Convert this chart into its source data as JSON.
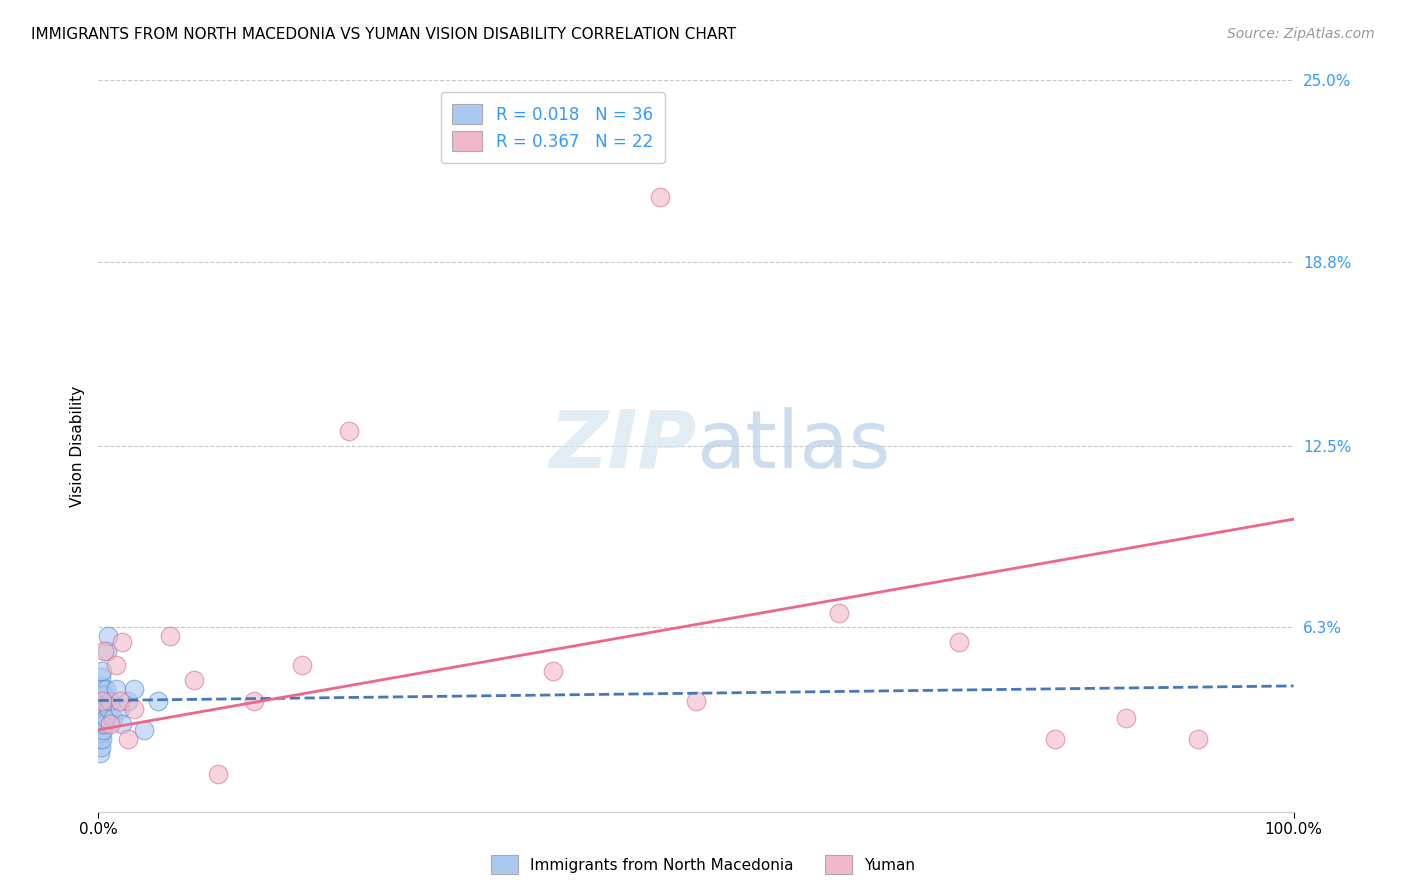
{
  "title": "IMMIGRANTS FROM NORTH MACEDONIA VS YUMAN VISION DISABILITY CORRELATION CHART",
  "source": "Source: ZipAtlas.com",
  "ylabel": "Vision Disability",
  "xlabel": "",
  "background_color": "#ffffff",
  "plot_bg_color": "#ffffff",
  "title_fontsize": 11,
  "source_fontsize": 10,
  "blue_R": 0.018,
  "blue_N": 36,
  "pink_R": 0.367,
  "pink_N": 22,
  "xlim": [
    0,
    1.0
  ],
  "ylim": [
    0,
    0.25
  ],
  "ytick_vals": [
    0.0,
    0.063,
    0.125,
    0.188,
    0.25
  ],
  "ytick_labels": [
    "",
    "6.3%",
    "12.5%",
    "18.8%",
    "25.0%"
  ],
  "xtick_vals": [
    0.0,
    1.0
  ],
  "xtick_labels": [
    "0.0%",
    "100.0%"
  ],
  "blue_scatter_x": [
    0.001,
    0.001,
    0.001,
    0.001,
    0.001,
    0.002,
    0.002,
    0.002,
    0.002,
    0.002,
    0.002,
    0.002,
    0.003,
    0.003,
    0.003,
    0.003,
    0.003,
    0.004,
    0.004,
    0.004,
    0.005,
    0.005,
    0.006,
    0.006,
    0.007,
    0.008,
    0.009,
    0.01,
    0.012,
    0.015,
    0.018,
    0.02,
    0.025,
    0.03,
    0.038,
    0.05
  ],
  "blue_scatter_y": [
    0.02,
    0.025,
    0.03,
    0.035,
    0.038,
    0.022,
    0.027,
    0.032,
    0.037,
    0.04,
    0.043,
    0.046,
    0.025,
    0.03,
    0.035,
    0.042,
    0.048,
    0.028,
    0.035,
    0.04,
    0.03,
    0.04,
    0.032,
    0.042,
    0.055,
    0.06,
    0.035,
    0.038,
    0.032,
    0.042,
    0.035,
    0.03,
    0.038,
    0.042,
    0.028,
    0.038
  ],
  "pink_scatter_x": [
    0.003,
    0.005,
    0.01,
    0.015,
    0.018,
    0.02,
    0.025,
    0.03,
    0.06,
    0.08,
    0.1,
    0.13,
    0.17,
    0.21,
    0.38,
    0.47,
    0.5,
    0.62,
    0.72,
    0.8,
    0.86,
    0.92
  ],
  "pink_scatter_y": [
    0.038,
    0.055,
    0.03,
    0.05,
    0.038,
    0.058,
    0.025,
    0.035,
    0.06,
    0.045,
    0.013,
    0.038,
    0.05,
    0.13,
    0.048,
    0.21,
    0.038,
    0.068,
    0.058,
    0.025,
    0.032,
    0.025
  ],
  "blue_line_y_start": 0.038,
  "blue_line_y_end": 0.043,
  "pink_line_y_start": 0.028,
  "pink_line_y_end": 0.1,
  "grid_color": "#c8c8c8",
  "blue_color": "#aac8f0",
  "blue_edge_color": "#5588cc",
  "blue_line_color": "#4477bb",
  "pink_color": "#f0b8c8",
  "pink_edge_color": "#dd6688",
  "pink_line_color": "#ee6688",
  "watermark_color": "#d5e4f0",
  "watermark_alpha": 0.7
}
